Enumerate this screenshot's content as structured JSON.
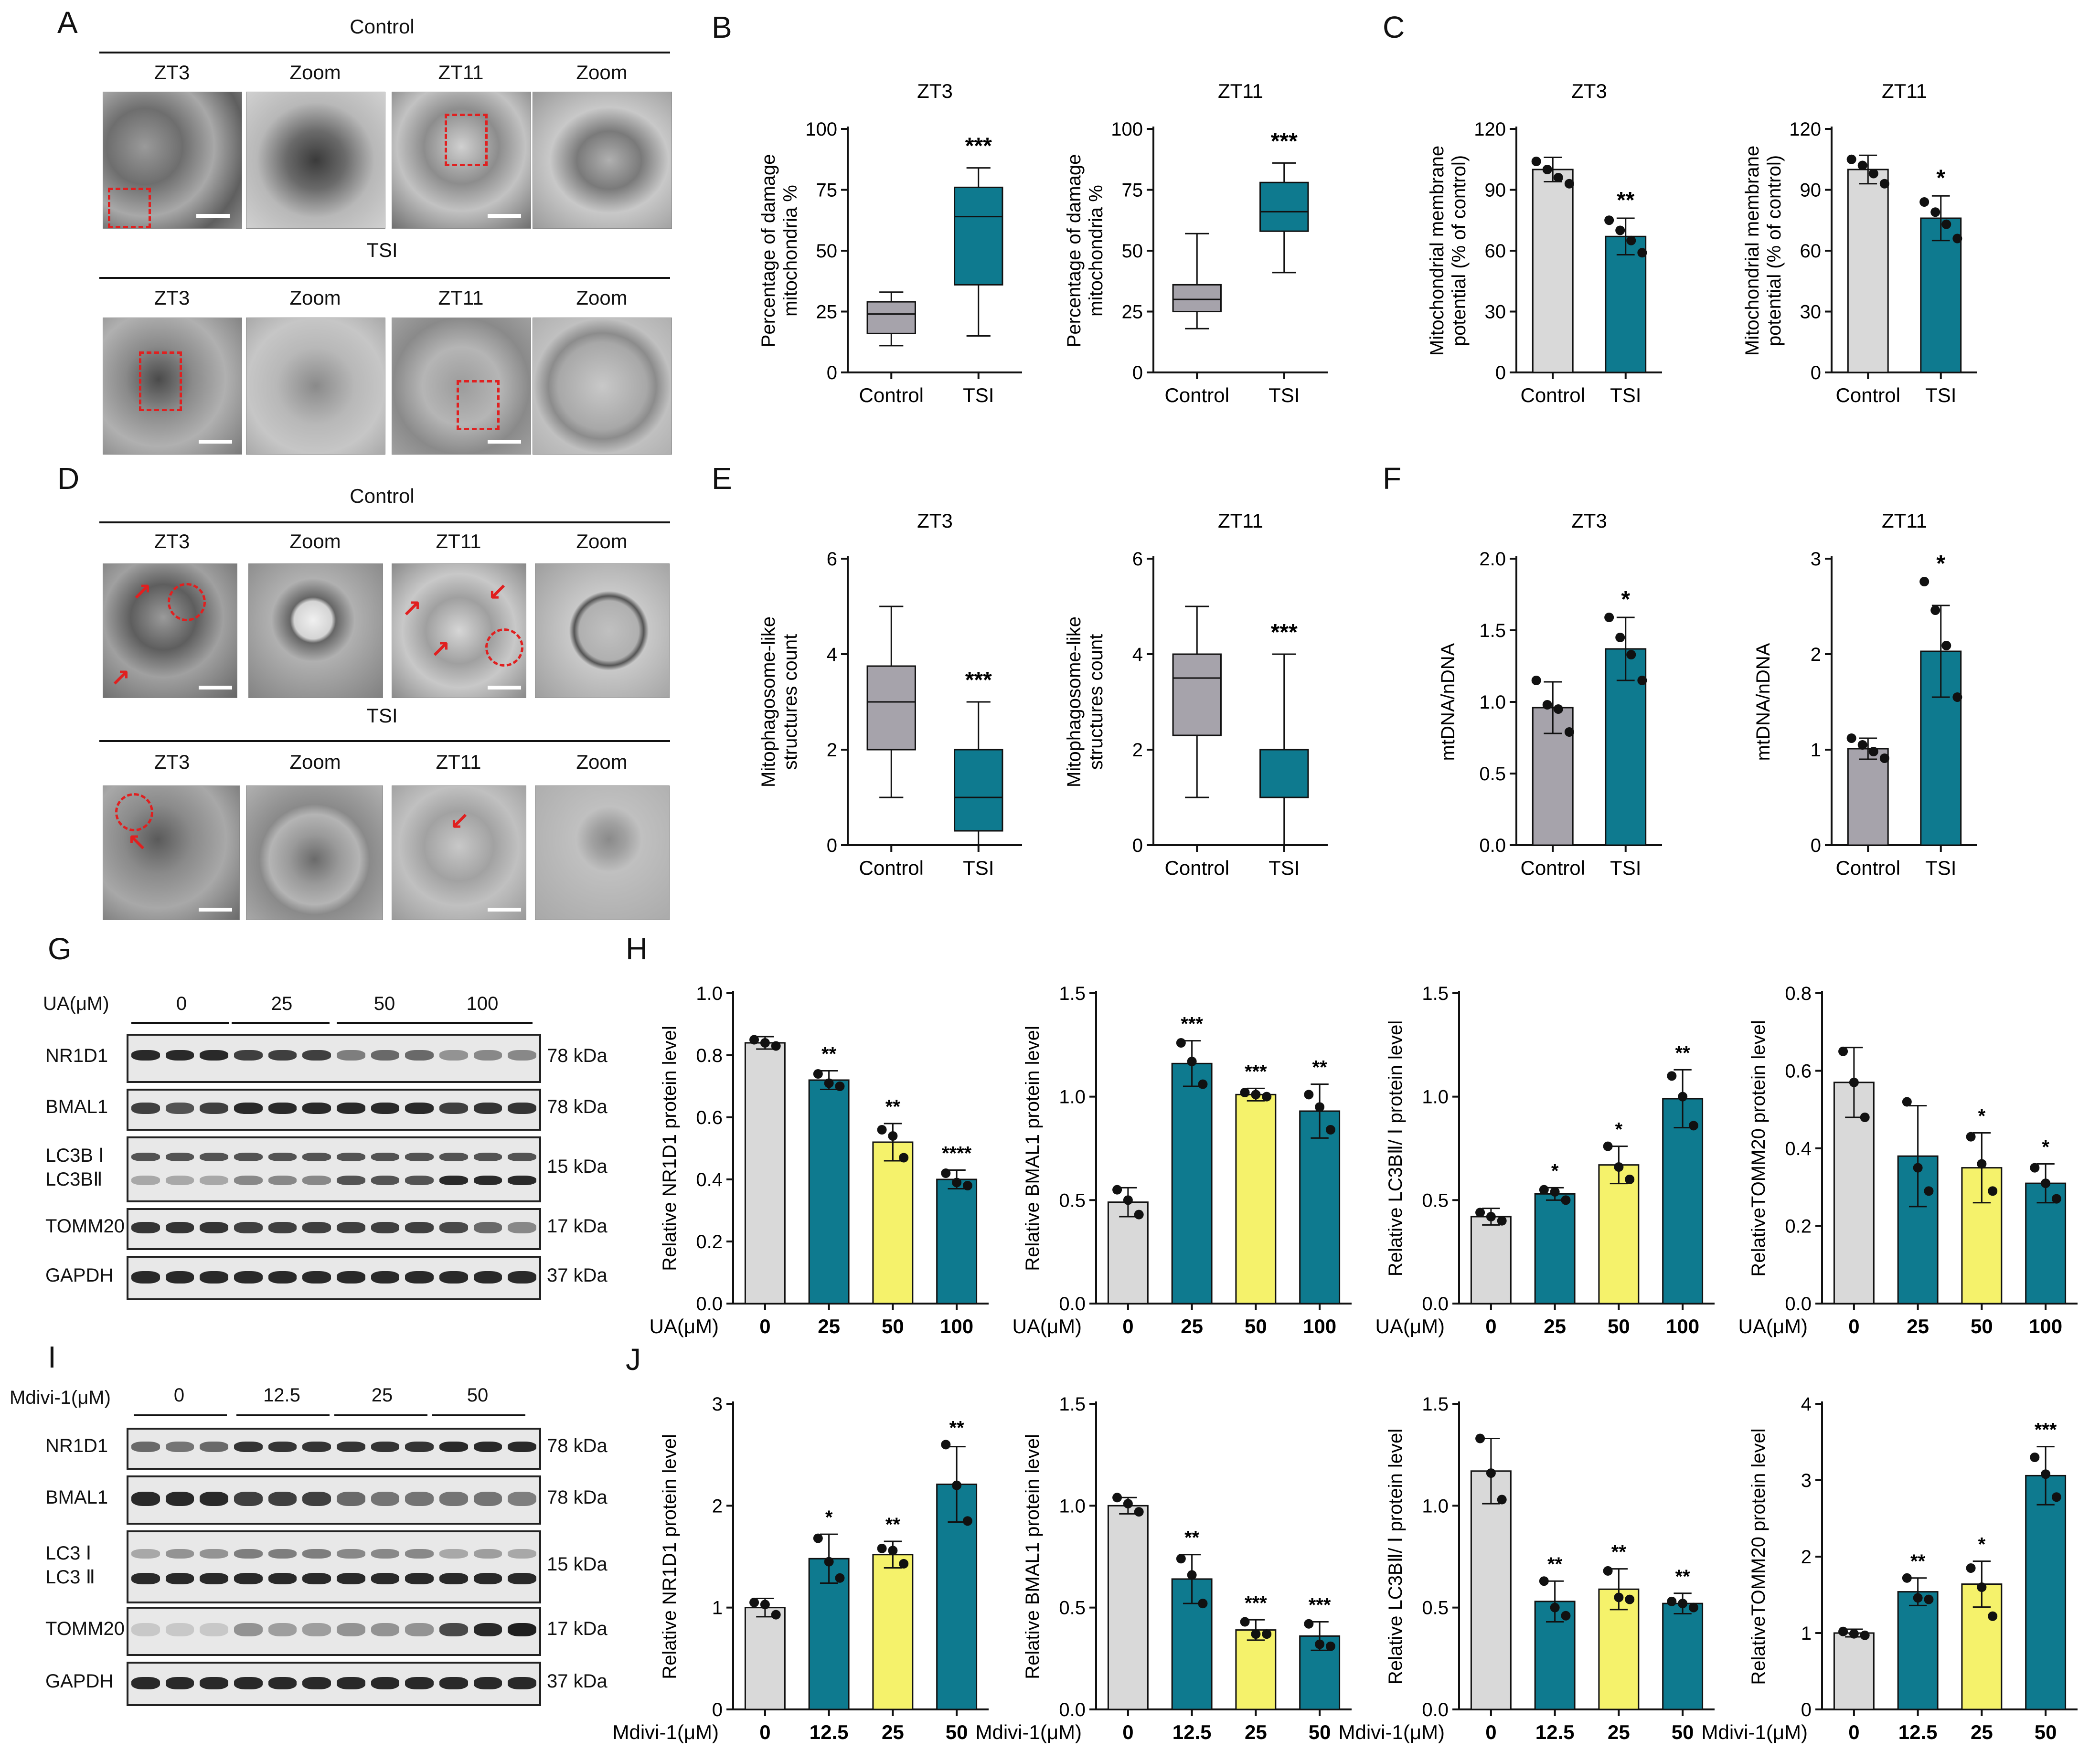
{
  "panel_labels": [
    "A",
    "B",
    "C",
    "D",
    "E",
    "F",
    "G",
    "H",
    "I",
    "J"
  ],
  "panelA": {
    "control": "Control",
    "tsi": "TSI",
    "cols": [
      "ZT3",
      "Zoom",
      "ZT11",
      "Zoom"
    ]
  },
  "panelD": {
    "control": "Control",
    "tsi": "TSI",
    "cols": [
      "ZT3",
      "Zoom",
      "ZT11",
      "Zoom"
    ]
  },
  "panelG": {
    "treatment_label": "UA(μM)",
    "groups": [
      "0",
      "25",
      "50",
      "100"
    ],
    "rows": [
      {
        "name": "NR1D1",
        "kda": "78 kDa"
      },
      {
        "name": "BMAL1",
        "kda": "78 kDa"
      },
      {
        "name": "LC3B Ⅰ",
        "name2": "LC3BⅡ",
        "kda": "15 kDa"
      },
      {
        "name": "TOMM20",
        "kda": "17 kDa"
      },
      {
        "name": "GAPDH",
        "kda": "37 kDa"
      }
    ]
  },
  "panelI": {
    "treatment_label": "Mdivi-1(μM)",
    "groups": [
      "0",
      "12.5",
      "25",
      "50"
    ],
    "rows": [
      {
        "name": "NR1D1",
        "kda": "78 kDa"
      },
      {
        "name": "BMAL1",
        "kda": "78 kDa"
      },
      {
        "name": "LC3 Ⅰ",
        "name2": "LC3 Ⅱ",
        "kda": "15 kDa"
      },
      {
        "name": "TOMM20",
        "kda": "17 kDa"
      },
      {
        "name": "GAPDH",
        "kda": "37 kDa"
      }
    ]
  },
  "colors": {
    "grey_light": "#d9d9d9",
    "grey": "#a6a3ab",
    "teal": "#0e7a8f",
    "yellow": "#f5f26b",
    "red": "#e02020"
  },
  "chart_data": [
    {
      "id": "B1",
      "type": "box",
      "title": "ZT3",
      "ylabel": "Percentage of damage mitochondria %",
      "ylim": [
        0,
        100
      ],
      "yticks": [
        0,
        25,
        50,
        75,
        100
      ],
      "categories": [
        "Control",
        "TSI"
      ],
      "boxes": [
        {
          "min": 11,
          "q1": 16,
          "median": 24,
          "q3": 29,
          "max": 33
        },
        {
          "min": 15,
          "q1": 36,
          "median": 64,
          "q3": 76,
          "max": 84
        }
      ],
      "sig": [
        "",
        "***"
      ]
    },
    {
      "id": "B2",
      "type": "box",
      "title": "ZT11",
      "ylabel": "Percentage of damage mitochondria %",
      "ylim": [
        0,
        100
      ],
      "yticks": [
        0,
        25,
        50,
        75,
        100
      ],
      "categories": [
        "Control",
        "TSI"
      ],
      "boxes": [
        {
          "min": 18,
          "q1": 25,
          "median": 30,
          "q3": 36,
          "max": 57
        },
        {
          "min": 41,
          "q1": 58,
          "median": 66,
          "q3": 78,
          "max": 86
        }
      ],
      "sig": [
        "",
        "***"
      ]
    },
    {
      "id": "C1",
      "type": "bar",
      "title": "ZT3",
      "ylabel": "Mitochondrial membrane potential  (% of control)",
      "ylim": [
        0,
        120
      ],
      "yticks": [
        0,
        30,
        60,
        90,
        120
      ],
      "categories": [
        "Control",
        "TSI"
      ],
      "values": [
        100,
        67
      ],
      "err": [
        6,
        9
      ],
      "points": [
        [
          104,
          100,
          96,
          93
        ],
        [
          75,
          70,
          65,
          59
        ]
      ],
      "sig": [
        "",
        "**"
      ]
    },
    {
      "id": "C2",
      "type": "bar",
      "title": "ZT11",
      "ylabel": "Mitochondrial membrane potential  (% of control)",
      "ylim": [
        0,
        120
      ],
      "yticks": [
        0,
        30,
        60,
        90,
        120
      ],
      "categories": [
        "Control",
        "TSI"
      ],
      "values": [
        100,
        76
      ],
      "err": [
        7,
        11
      ],
      "points": [
        [
          105,
          102,
          98,
          93
        ],
        [
          84,
          79,
          73,
          66
        ]
      ],
      "sig": [
        "",
        "*"
      ]
    },
    {
      "id": "E1",
      "type": "box",
      "title": "ZT3",
      "ylabel": "Mitophagosome-like structures count",
      "ylim": [
        0,
        6
      ],
      "yticks": [
        0,
        2,
        4,
        6
      ],
      "categories": [
        "Control",
        "TSI"
      ],
      "boxes": [
        {
          "min": 1,
          "q1": 2,
          "median": 3,
          "q3": 3.75,
          "max": 5
        },
        {
          "min": 0,
          "q1": 0.3,
          "median": 1,
          "q3": 2,
          "max": 3
        }
      ],
      "sig": [
        "",
        "***"
      ]
    },
    {
      "id": "E2",
      "type": "box",
      "title": "ZT11",
      "ylabel": "Mitophagosome-like structures count",
      "ylim": [
        0,
        6
      ],
      "yticks": [
        0,
        2,
        4,
        6
      ],
      "categories": [
        "Control",
        "TSI"
      ],
      "boxes": [
        {
          "min": 1,
          "q1": 2.3,
          "median": 3.5,
          "q3": 4,
          "max": 5
        },
        {
          "min": 0,
          "q1": 1,
          "median": 1,
          "q3": 2,
          "max": 4
        }
      ],
      "sig": [
        "",
        "***"
      ]
    },
    {
      "id": "F1",
      "type": "bar",
      "title": "ZT3",
      "ylabel": "mtDNA/nDNA",
      "ylim": [
        0,
        2.0
      ],
      "yticks": [
        "0.0",
        "0.5",
        "1.0",
        "1.5",
        "2.0"
      ],
      "categories": [
        "Control",
        "TSI"
      ],
      "values": [
        0.96,
        1.37
      ],
      "err": [
        0.18,
        0.22
      ],
      "points": [
        [
          1.15,
          0.98,
          0.95,
          0.79
        ],
        [
          1.59,
          1.45,
          1.33,
          1.15
        ]
      ],
      "sig": [
        "",
        "*"
      ]
    },
    {
      "id": "F2",
      "type": "bar",
      "title": "ZT11",
      "ylabel": "mtDNA/nDNA",
      "ylim": [
        0,
        3
      ],
      "yticks": [
        0,
        1,
        2,
        3
      ],
      "categories": [
        "Control",
        "TSI"
      ],
      "values": [
        1.01,
        2.03
      ],
      "err": [
        0.11,
        0.48
      ],
      "points": [
        [
          1.12,
          1.05,
          0.98,
          0.91
        ],
        [
          2.76,
          2.46,
          2.09,
          1.55
        ]
      ],
      "sig": [
        "",
        "*"
      ]
    },
    {
      "id": "H1",
      "type": "bar",
      "ylabel": "Relative NR1D1 protein level",
      "ylim": [
        0,
        1.0
      ],
      "yticks": [
        "0.0",
        "0.2",
        "0.4",
        "0.6",
        "0.8",
        "1.0"
      ],
      "xaxis_label": "UA(μM)",
      "categories": [
        "0",
        "25",
        "50",
        "100"
      ],
      "values": [
        0.84,
        0.72,
        0.52,
        0.4
      ],
      "err": [
        0.02,
        0.03,
        0.06,
        0.03
      ],
      "points": [
        [
          0.85,
          0.84,
          0.83
        ],
        [
          0.74,
          0.71,
          0.7
        ],
        [
          0.56,
          0.54,
          0.47
        ],
        [
          0.42,
          0.39,
          0.38
        ]
      ],
      "sig": [
        "",
        "**",
        "**",
        "****"
      ]
    },
    {
      "id": "H2",
      "type": "bar",
      "ylabel": "Relative BMAL1 protein level",
      "ylim": [
        0,
        1.5
      ],
      "yticks": [
        "0.0",
        "0.5",
        "1.0",
        "1.5"
      ],
      "xaxis_label": "UA(μM)",
      "categories": [
        "0",
        "25",
        "50",
        "100"
      ],
      "values": [
        0.49,
        1.16,
        1.01,
        0.93
      ],
      "err": [
        0.07,
        0.11,
        0.03,
        0.13
      ],
      "points": [
        [
          0.55,
          0.5,
          0.43
        ],
        [
          1.26,
          1.17,
          1.06
        ],
        [
          1.02,
          1.01,
          1.0
        ],
        [
          1.01,
          0.95,
          0.84
        ]
      ],
      "sig": [
        "",
        "***",
        "***",
        "**"
      ]
    },
    {
      "id": "H3",
      "type": "bar",
      "ylabel": "Relative LC3BⅡ/ Ⅰ protein  level",
      "ylim": [
        0,
        1.5
      ],
      "yticks": [
        "0.0",
        "0.5",
        "1.0",
        "1.5"
      ],
      "xaxis_label": "UA(μM)",
      "categories": [
        "0",
        "25",
        "50",
        "100"
      ],
      "values": [
        0.42,
        0.53,
        0.67,
        0.99
      ],
      "err": [
        0.04,
        0.03,
        0.09,
        0.14
      ],
      "points": [
        [
          0.44,
          0.42,
          0.4
        ],
        [
          0.55,
          0.54,
          0.5
        ],
        [
          0.76,
          0.66,
          0.6
        ],
        [
          1.1,
          1.0,
          0.86
        ]
      ],
      "sig": [
        "",
        "*",
        "*",
        "**"
      ]
    },
    {
      "id": "H4",
      "type": "bar",
      "ylabel": "RelativeTOMM20 protein  level",
      "ylim": [
        0,
        0.8
      ],
      "yticks": [
        "0.0",
        "0.2",
        "0.4",
        "0.6",
        "0.8"
      ],
      "xaxis_label": "UA(μM)",
      "categories": [
        "0",
        "25",
        "50",
        "100"
      ],
      "values": [
        0.57,
        0.38,
        0.35,
        0.31
      ],
      "err": [
        0.09,
        0.13,
        0.09,
        0.05
      ],
      "points": [
        [
          0.65,
          0.57,
          0.48
        ],
        [
          0.52,
          0.35,
          0.29
        ],
        [
          0.43,
          0.36,
          0.29
        ],
        [
          0.35,
          0.31,
          0.27
        ]
      ],
      "sig": [
        "",
        "",
        "*",
        "*"
      ]
    },
    {
      "id": "J1",
      "type": "bar",
      "ylabel": "Relative NR1D1 protein level",
      "ylim": [
        0,
        3
      ],
      "yticks": [
        0,
        1,
        2,
        3
      ],
      "xaxis_label": "Mdivi-1(μM)",
      "categories": [
        "0",
        "12.5",
        "25",
        "50"
      ],
      "values": [
        1.0,
        1.48,
        1.52,
        2.21
      ],
      "err": [
        0.09,
        0.24,
        0.13,
        0.37
      ],
      "points": [
        [
          1.05,
          1.03,
          0.93
        ],
        [
          1.68,
          1.45,
          1.29
        ],
        [
          1.58,
          1.56,
          1.43
        ],
        [
          2.6,
          2.2,
          1.85
        ]
      ],
      "sig": [
        "",
        "*",
        "**",
        "**"
      ]
    },
    {
      "id": "J2",
      "type": "bar",
      "ylabel": "Relative BMAL1 protein level",
      "ylim": [
        0,
        1.5
      ],
      "yticks": [
        "0.0",
        "0.5",
        "1.0",
        "1.5"
      ],
      "xaxis_label": "Mdivi-1(μM)",
      "categories": [
        "0",
        "12.5",
        "25",
        "50"
      ],
      "values": [
        1.0,
        0.64,
        0.39,
        0.36
      ],
      "err": [
        0.04,
        0.12,
        0.05,
        0.07
      ],
      "points": [
        [
          1.04,
          1.01,
          0.97
        ],
        [
          0.74,
          0.66,
          0.52
        ],
        [
          0.43,
          0.37,
          0.37
        ],
        [
          0.42,
          0.32,
          0.31
        ]
      ],
      "sig": [
        "",
        "**",
        "***",
        "***"
      ]
    },
    {
      "id": "J3",
      "type": "bar",
      "ylabel": "Relative LC3BⅡ/ Ⅰ protein  level",
      "ylim": [
        0,
        1.5
      ],
      "yticks": [
        "0.0",
        "0.5",
        "1.0",
        "1.5"
      ],
      "xaxis_label": "Mdivi-1(μM)",
      "categories": [
        "0",
        "12.5",
        "25",
        "50"
      ],
      "values": [
        1.17,
        0.53,
        0.59,
        0.52
      ],
      "err": [
        0.16,
        0.1,
        0.1,
        0.05
      ],
      "points": [
        [
          1.33,
          1.16,
          1.03
        ],
        [
          0.63,
          0.5,
          0.46
        ],
        [
          0.68,
          0.55,
          0.54
        ],
        [
          0.53,
          0.52,
          0.5
        ]
      ],
      "sig": [
        "",
        "**",
        "**",
        "**"
      ]
    },
    {
      "id": "J4",
      "type": "bar",
      "ylabel": "RelativeTOMM20 protein level",
      "ylim": [
        0,
        4
      ],
      "yticks": [
        0,
        1,
        2,
        3,
        4
      ],
      "xaxis_label": "Mdivi-1(μM)",
      "categories": [
        "0",
        "12.5",
        "25",
        "50"
      ],
      "values": [
        1.0,
        1.54,
        1.64,
        3.06
      ],
      "err": [
        0.05,
        0.18,
        0.3,
        0.38
      ],
      "points": [
        [
          1.02,
          0.99,
          0.97
        ],
        [
          1.72,
          1.46,
          1.44
        ],
        [
          1.85,
          1.6,
          1.22
        ],
        [
          3.3,
          3.08,
          2.78
        ]
      ],
      "sig": [
        "",
        "**",
        "*",
        "***"
      ]
    }
  ]
}
